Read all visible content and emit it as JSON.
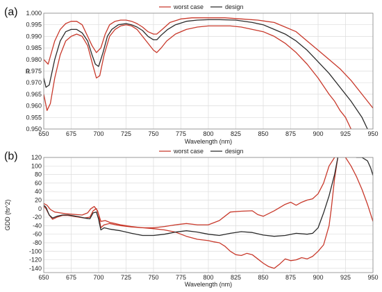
{
  "chart_data": [
    {
      "panel_label": "(a)",
      "type": "line",
      "xlabel": "Wavelength (nm)",
      "ylabel": "R",
      "xlim": [
        650,
        950
      ],
      "ylim": [
        0.95,
        1.0
      ],
      "xticks": [
        650,
        675,
        700,
        725,
        750,
        775,
        800,
        825,
        850,
        875,
        900,
        925,
        950
      ],
      "yticks": [
        0.95,
        0.955,
        0.96,
        0.965,
        0.97,
        0.975,
        0.98,
        0.985,
        0.99,
        0.995,
        1.0
      ],
      "ytick_labels": [
        "0.950",
        "0.955",
        "0.960",
        "0.965",
        "0.970",
        "0.975",
        "0.980",
        "0.985",
        "0.990",
        "0.995",
        "1.000"
      ],
      "grid": true,
      "legend_position": "top-center",
      "series": [
        {
          "name": "worst case",
          "color": "#c8382a",
          "x": [
            650,
            653,
            656,
            660,
            665,
            670,
            675,
            680,
            685,
            690,
            695,
            698,
            701,
            705,
            710,
            715,
            720,
            725,
            730,
            735,
            740,
            745,
            750,
            753,
            757,
            762,
            770,
            780,
            790,
            800,
            810,
            820,
            830,
            840,
            850,
            860,
            870,
            880,
            890,
            900,
            910,
            915,
            920,
            925,
            930
          ],
          "y": [
            0.965,
            0.958,
            0.961,
            0.972,
            0.982,
            0.988,
            0.99,
            0.991,
            0.99,
            0.986,
            0.977,
            0.972,
            0.973,
            0.982,
            0.99,
            0.993,
            0.9945,
            0.995,
            0.9945,
            0.993,
            0.99,
            0.987,
            0.984,
            0.983,
            0.985,
            0.988,
            0.991,
            0.993,
            0.994,
            0.9945,
            0.9945,
            0.9945,
            0.994,
            0.993,
            0.992,
            0.99,
            0.987,
            0.983,
            0.978,
            0.972,
            0.965,
            0.962,
            0.958,
            0.955,
            0.95
          ]
        },
        {
          "name": "worst case",
          "color": "#c8382a",
          "x": [
            650,
            654,
            660,
            665,
            670,
            675,
            680,
            685,
            690,
            694,
            698,
            702,
            706,
            710,
            715,
            720,
            725,
            730,
            735,
            740,
            745,
            750,
            753,
            758,
            765,
            775,
            785,
            800,
            815,
            830,
            845,
            860,
            870,
            880,
            890,
            900,
            910,
            920,
            930,
            940,
            950
          ],
          "y": [
            0.98,
            0.978,
            0.988,
            0.993,
            0.9955,
            0.9965,
            0.9965,
            0.995,
            0.99,
            0.986,
            0.983,
            0.985,
            0.991,
            0.995,
            0.9965,
            0.997,
            0.997,
            0.9965,
            0.9955,
            0.994,
            0.992,
            0.991,
            0.991,
            0.993,
            0.996,
            0.9975,
            0.998,
            0.998,
            0.998,
            0.9975,
            0.997,
            0.996,
            0.994,
            0.992,
            0.988,
            0.984,
            0.98,
            0.976,
            0.971,
            0.965,
            0.959
          ]
        },
        {
          "name": "design",
          "color": "#2a2a2a",
          "x": [
            650,
            652,
            655,
            660,
            665,
            670,
            675,
            680,
            685,
            690,
            694,
            697,
            700,
            704,
            708,
            712,
            718,
            725,
            730,
            735,
            740,
            745,
            750,
            753,
            757,
            763,
            770,
            780,
            790,
            800,
            810,
            825,
            840,
            850,
            860,
            870,
            880,
            890,
            900,
            910,
            920,
            930,
            940,
            945
          ],
          "y": [
            0.972,
            0.968,
            0.969,
            0.98,
            0.988,
            0.992,
            0.993,
            0.993,
            0.9915,
            0.988,
            0.982,
            0.978,
            0.977,
            0.983,
            0.99,
            0.993,
            0.995,
            0.9955,
            0.995,
            0.994,
            0.9925,
            0.99,
            0.9885,
            0.9885,
            0.9905,
            0.993,
            0.995,
            0.9965,
            0.997,
            0.9972,
            0.9972,
            0.997,
            0.996,
            0.995,
            0.993,
            0.991,
            0.988,
            0.984,
            0.979,
            0.974,
            0.968,
            0.962,
            0.955,
            0.95
          ]
        }
      ]
    },
    {
      "panel_label": "(b)",
      "type": "line",
      "xlabel": "Wavelength (nm)",
      "ylabel": "GDD (fs^2)",
      "xlim": [
        650,
        950
      ],
      "ylim": [
        -150,
        120
      ],
      "xticks": [
        650,
        675,
        700,
        725,
        750,
        775,
        800,
        825,
        850,
        875,
        900,
        925,
        950
      ],
      "yticks": [
        -140,
        -120,
        -100,
        -80,
        -60,
        -40,
        -20,
        0,
        20,
        40,
        60,
        80,
        100,
        120
      ],
      "grid": true,
      "legend_position": "top-center",
      "series": [
        {
          "name": "worst case",
          "color": "#c8382a",
          "x": [
            650,
            652,
            655,
            658,
            662,
            667,
            672,
            677,
            682,
            687,
            692,
            695,
            698,
            700,
            702,
            705,
            710,
            720,
            730,
            740,
            750,
            760,
            770,
            780,
            790,
            800,
            805,
            810,
            815,
            820,
            825,
            830,
            835,
            840,
            845,
            850,
            855,
            860,
            865,
            870,
            875,
            880,
            885,
            890,
            895,
            900,
            905,
            910,
            912,
            915,
            918
          ],
          "y": [
            6,
            0,
            -15,
            -25,
            -20,
            -16,
            -16,
            -18,
            -20,
            -22,
            -20,
            -5,
            0,
            -15,
            -45,
            -38,
            -35,
            -40,
            -43,
            -45,
            -47,
            -50,
            -55,
            -65,
            -72,
            -75,
            -78,
            -80,
            -88,
            -100,
            -108,
            -110,
            -105,
            -108,
            -118,
            -128,
            -136,
            -140,
            -130,
            -118,
            -122,
            -120,
            -115,
            -118,
            -112,
            -100,
            -85,
            -40,
            0,
            70,
            120
          ]
        },
        {
          "name": "worst case",
          "color": "#c8382a",
          "x": [
            650,
            653,
            656,
            660,
            665,
            670,
            675,
            680,
            685,
            690,
            693,
            696,
            699,
            702,
            706,
            710,
            720,
            730,
            740,
            750,
            760,
            770,
            780,
            790,
            800,
            810,
            820,
            830,
            840,
            845,
            850,
            860,
            870,
            875,
            880,
            885,
            890,
            895,
            900,
            905,
            910,
            915,
            920,
            925,
            930,
            935,
            940,
            945,
            950
          ],
          "y": [
            12,
            8,
            -2,
            -8,
            -10,
            -12,
            -13,
            -14,
            -15,
            -10,
            0,
            5,
            -5,
            -30,
            -28,
            -32,
            -38,
            -42,
            -45,
            -45,
            -42,
            -38,
            -35,
            -38,
            -38,
            -28,
            -8,
            -6,
            -5,
            -14,
            -18,
            -5,
            10,
            15,
            8,
            15,
            20,
            23,
            35,
            60,
            100,
            120,
            130,
            120,
            100,
            75,
            45,
            10,
            -30
          ]
        },
        {
          "name": "design",
          "color": "#2a2a2a",
          "x": [
            650,
            652,
            655,
            658,
            662,
            667,
            672,
            677,
            682,
            687,
            692,
            695,
            698,
            700,
            702,
            705,
            710,
            720,
            730,
            740,
            750,
            760,
            770,
            780,
            790,
            800,
            810,
            820,
            830,
            840,
            850,
            860,
            870,
            880,
            890,
            895,
            900,
            905,
            910,
            915,
            918,
            920,
            925,
            930,
            935,
            940,
            945,
            948,
            950
          ],
          "y": [
            8,
            3,
            -15,
            -22,
            -18,
            -15,
            -15,
            -17,
            -19,
            -22,
            -24,
            -10,
            -8,
            -25,
            -50,
            -45,
            -48,
            -52,
            -58,
            -63,
            -63,
            -60,
            -55,
            -52,
            -55,
            -60,
            -63,
            -58,
            -54,
            -56,
            -62,
            -65,
            -63,
            -58,
            -60,
            -58,
            -45,
            -10,
            30,
            80,
            120,
            130,
            145,
            140,
            120,
            120,
            112,
            95,
            78
          ]
        }
      ]
    }
  ]
}
